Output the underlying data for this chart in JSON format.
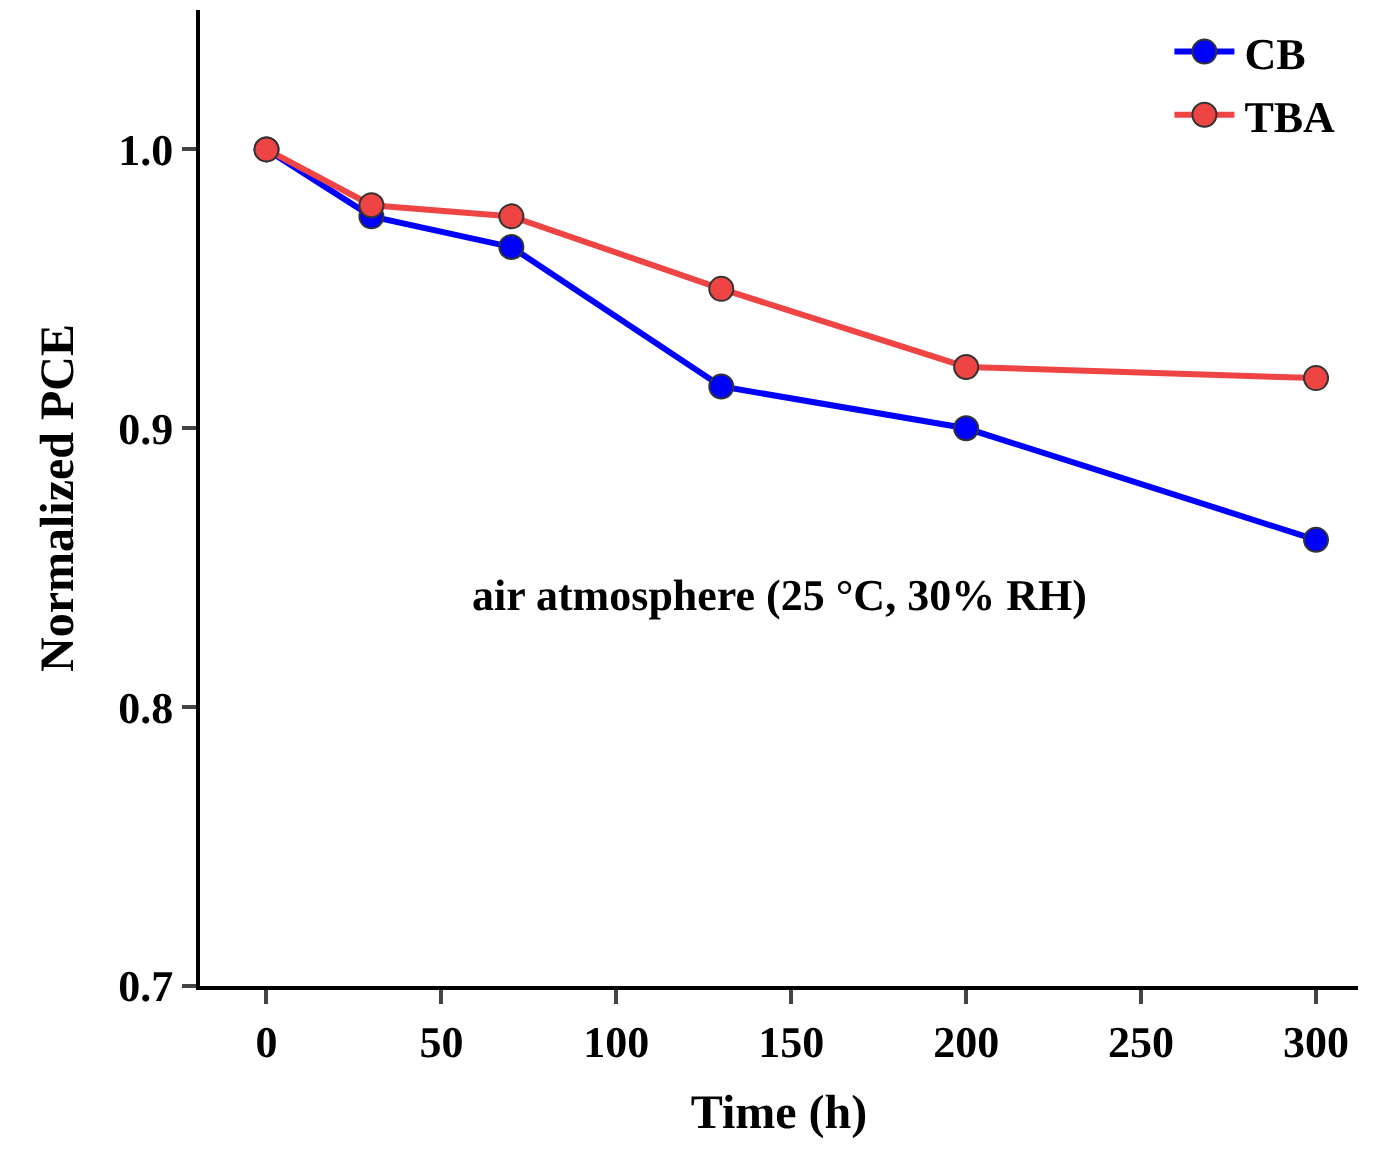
{
  "chart_data": {
    "type": "line",
    "xlabel": "Time (h)",
    "ylabel": "Normalized PCE",
    "x": [
      0,
      30,
      70,
      130,
      200,
      300
    ],
    "series": [
      {
        "name": "CB",
        "color": "#0000ff",
        "values": [
          1.0,
          0.976,
          0.965,
          0.915,
          0.9,
          0.86
        ]
      },
      {
        "name": "TBA",
        "color": "#ef4444",
        "values": [
          1.0,
          0.98,
          0.976,
          0.95,
          0.922,
          0.918
        ]
      }
    ],
    "xlim": [
      -19,
      312
    ],
    "xticks": [
      0,
      50,
      100,
      150,
      200,
      250,
      300
    ],
    "ylim": [
      0.7,
      1.05
    ],
    "yticks": [
      {
        "value": 0.7,
        "label": "0.7"
      },
      {
        "value": 0.8,
        "label": "0.8"
      },
      {
        "value": 0.9,
        "label": "0.9"
      },
      {
        "value": 1.0,
        "label": "1.0"
      }
    ],
    "annotations": [
      "air atmosphere (25 °C, 30% RH)"
    ],
    "legend": "top right",
    "marker": "circle",
    "line_style": "solid"
  }
}
